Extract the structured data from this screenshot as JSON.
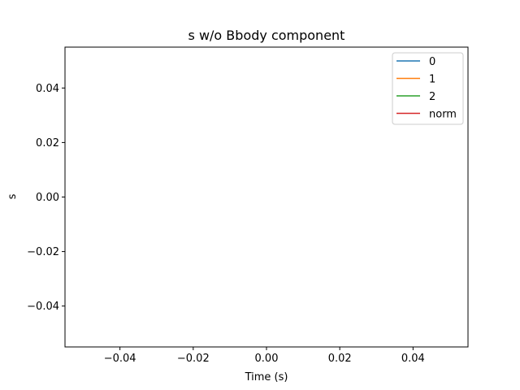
{
  "chart_data": {
    "type": "line",
    "title": "s w/o Bbody component",
    "xlabel": "Time (s)",
    "ylabel": "s",
    "xlim": [
      -0.055,
      0.055
    ],
    "ylim": [
      -0.055,
      0.055
    ],
    "xticks": [
      -0.04,
      -0.02,
      0.0,
      0.02,
      0.04
    ],
    "xtick_labels": [
      "−0.04",
      "−0.02",
      "0.00",
      "0.02",
      "0.04"
    ],
    "yticks": [
      -0.04,
      -0.02,
      0.0,
      0.02,
      0.04
    ],
    "ytick_labels": [
      "−0.04",
      "−0.02",
      "0.00",
      "0.02",
      "0.04"
    ],
    "grid": false,
    "legend_position": "upper right",
    "series": [
      {
        "name": "0",
        "color": "#1f77b4",
        "x": [],
        "y": []
      },
      {
        "name": "1",
        "color": "#ff7f0e",
        "x": [],
        "y": []
      },
      {
        "name": "2",
        "color": "#2ca02c",
        "x": [],
        "y": []
      },
      {
        "name": "norm",
        "color": "#d62728",
        "x": [],
        "y": []
      }
    ]
  }
}
